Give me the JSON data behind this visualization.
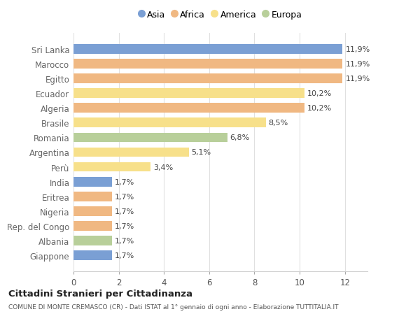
{
  "categories": [
    "Sri Lanka",
    "Marocco",
    "Egitto",
    "Ecuador",
    "Algeria",
    "Brasile",
    "Romania",
    "Argentina",
    "Perù",
    "India",
    "Eritrea",
    "Nigeria",
    "Rep. del Congo",
    "Albania",
    "Giappone"
  ],
  "values": [
    11.9,
    11.9,
    11.9,
    10.2,
    10.2,
    8.5,
    6.8,
    5.1,
    3.4,
    1.7,
    1.7,
    1.7,
    1.7,
    1.7,
    1.7
  ],
  "labels": [
    "11,9%",
    "11,9%",
    "11,9%",
    "10,2%",
    "10,2%",
    "8,5%",
    "6,8%",
    "5,1%",
    "3,4%",
    "1,7%",
    "1,7%",
    "1,7%",
    "1,7%",
    "1,7%",
    "1,7%"
  ],
  "continents": [
    "Asia",
    "Africa",
    "Africa",
    "America",
    "Africa",
    "America",
    "Europa",
    "America",
    "America",
    "Asia",
    "Africa",
    "Africa",
    "Africa",
    "Europa",
    "Asia"
  ],
  "colors": {
    "Asia": "#7a9fd4",
    "Africa": "#f0b882",
    "America": "#f7e08a",
    "Europa": "#b8cf9a"
  },
  "legend_labels": [
    "Asia",
    "Africa",
    "America",
    "Europa"
  ],
  "title": "Cittadini Stranieri per Cittadinanza",
  "subtitle": "COMUNE DI MONTE CREMASCO (CR) - Dati ISTAT al 1° gennaio di ogni anno - Elaborazione TUTTITALIA.IT",
  "xlim": [
    0,
    13.0
  ],
  "xticks": [
    0,
    2,
    4,
    6,
    8,
    10,
    12
  ],
  "bg_color": "#ffffff",
  "plot_bg_color": "#ffffff",
  "grid_color": "#e0e0e0",
  "label_fontsize": 8.0,
  "ytick_fontsize": 8.5,
  "xtick_fontsize": 8.5
}
